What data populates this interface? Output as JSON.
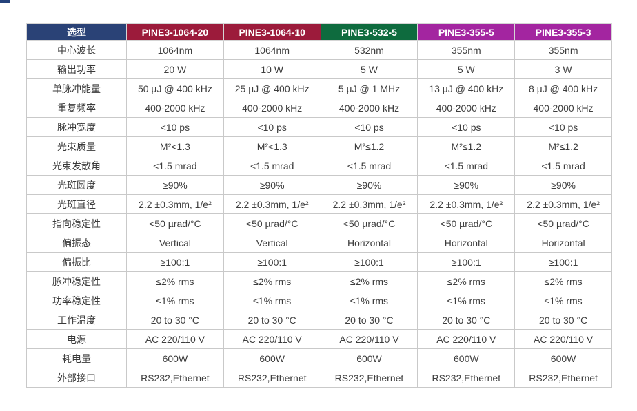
{
  "page": {
    "background": "#ffffff",
    "logo_fragment_color": "#24427b"
  },
  "colors": {
    "header_navy": "#2a4276",
    "header_crimson": "#9c1b3b",
    "header_green": "#0e6b3e",
    "header_magenta": "#a325a0",
    "grid_border": "#c9c9c9",
    "body_text": "#3d3d3d",
    "header_text": "#ffffff"
  },
  "table": {
    "header": {
      "cells": [
        {
          "label": "选型",
          "bg": "#2a4276"
        },
        {
          "label": "PINE3-1064-20",
          "bg": "#9c1b3b"
        },
        {
          "label": "PINE3-1064-10",
          "bg": "#9c1b3b"
        },
        {
          "label": "PINE3-532-5",
          "bg": "#0e6b3e"
        },
        {
          "label": "PINE3-355-5",
          "bg": "#a325a0"
        },
        {
          "label": "PINE3-355-3",
          "bg": "#a325a0"
        }
      ]
    },
    "rows": [
      {
        "label": "中心波长",
        "values": [
          "1064nm",
          "1064nm",
          "532nm",
          "355nm",
          "355nm"
        ]
      },
      {
        "label": "输出功率",
        "values": [
          "20 W",
          "10 W",
          "5 W",
          "5 W",
          "3 W"
        ]
      },
      {
        "label": "单脉冲能量",
        "values": [
          "50 µJ @ 400 kHz",
          "25 µJ @ 400 kHz",
          "5 µJ @ 1 MHz",
          "13 µJ @ 400 kHz",
          "8 µJ @ 400 kHz"
        ]
      },
      {
        "label": "重复频率",
        "values": [
          "400-2000 kHz",
          "400-2000 kHz",
          "400-2000 kHz",
          "400-2000 kHz",
          "400-2000 kHz"
        ]
      },
      {
        "label": "脉冲宽度",
        "values": [
          "<10 ps",
          "<10 ps",
          "<10 ps",
          "<10 ps",
          "<10 ps"
        ]
      },
      {
        "label": "光束质量",
        "values": [
          "M²<1.3",
          "M²<1.3",
          "M²≤1.2",
          "M²≤1.2",
          "M²≤1.2"
        ]
      },
      {
        "label": "光束发散角",
        "values": [
          "<1.5 mrad",
          "<1.5 mrad",
          "<1.5 mrad",
          "<1.5 mrad",
          "<1.5 mrad"
        ]
      },
      {
        "label": "光斑圆度",
        "values": [
          "≥90%",
          "≥90%",
          "≥90%",
          "≥90%",
          "≥90%"
        ]
      },
      {
        "label": "光斑直径",
        "values": [
          "2.2 ±0.3mm, 1/e²",
          "2.2 ±0.3mm, 1/e²",
          "2.2 ±0.3mm, 1/e²",
          "2.2 ±0.3mm, 1/e²",
          "2.2 ±0.3mm, 1/e²"
        ]
      },
      {
        "label": "指向稳定性",
        "values": [
          "<50 µrad/°C",
          "<50 µrad/°C",
          "<50 µrad/°C",
          "<50 µrad/°C",
          "<50 µrad/°C"
        ]
      },
      {
        "label": "偏振态",
        "values": [
          "Vertical",
          "Vertical",
          "Horizontal",
          "Horizontal",
          "Horizontal"
        ]
      },
      {
        "label": "偏振比",
        "values": [
          "≥100:1",
          "≥100:1",
          "≥100:1",
          "≥100:1",
          "≥100:1"
        ]
      },
      {
        "label": "脉冲稳定性",
        "values": [
          "≤2% rms",
          "≤2% rms",
          "≤2% rms",
          "≤2% rms",
          "≤2% rms"
        ]
      },
      {
        "label": "功率稳定性",
        "values": [
          "≤1% rms",
          "≤1% rms",
          "≤1% rms",
          "≤1% rms",
          "≤1% rms"
        ]
      },
      {
        "label": "工作温度",
        "values": [
          "20 to 30 °C",
          "20 to 30 °C",
          "20 to 30 °C",
          "20 to 30 °C",
          "20 to 30 °C"
        ]
      },
      {
        "label": "电源",
        "values": [
          "AC 220/110 V",
          "AC 220/110 V",
          "AC 220/110 V",
          "AC 220/110 V",
          "AC 220/110 V"
        ]
      },
      {
        "label": "耗电量",
        "values": [
          "600W",
          "600W",
          "600W",
          "600W",
          "600W"
        ]
      },
      {
        "label": "外部接口",
        "values": [
          "RS232,Ethernet",
          "RS232,Ethernet",
          "RS232,Ethernet",
          "RS232,Ethernet",
          "RS232,Ethernet"
        ]
      }
    ]
  }
}
